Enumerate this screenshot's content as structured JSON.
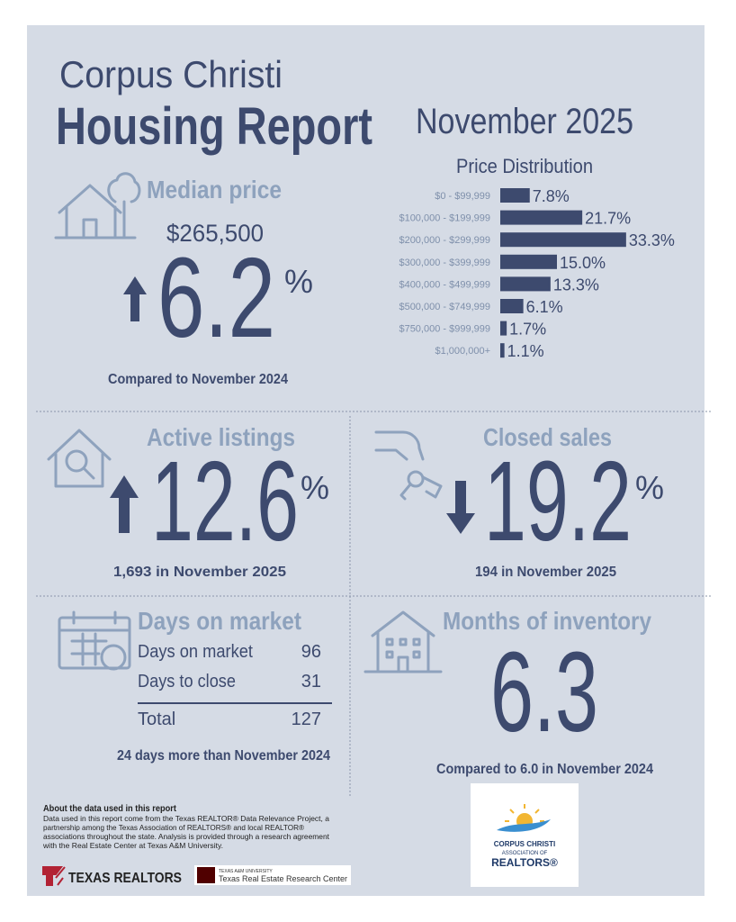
{
  "header": {
    "city": "Corpus Christi",
    "title": "Housing Report",
    "date": "November 2025"
  },
  "median_price": {
    "label": "Median price",
    "value": "$265,500",
    "change": "6.2",
    "unit": "%",
    "comparison": "Compared to November 2024"
  },
  "chart_data": {
    "type": "bar",
    "title": "Price Distribution",
    "categories": [
      "$0 - $99,999",
      "$100,000 - $199,999",
      "$200,000 - $299,999",
      "$300,000 - $399,999",
      "$400,000 - $499,999",
      "$500,000 - $749,999",
      "$750,000 - $999,999",
      "$1,000,000+"
    ],
    "values": [
      7.8,
      21.7,
      33.3,
      15.0,
      13.3,
      6.1,
      1.7,
      1.1
    ],
    "value_labels": [
      "7.8%",
      "21.7%",
      "33.3%",
      "15.0%",
      "13.3%",
      "6.1%",
      "1.7%",
      "1.1%"
    ],
    "color": "#3d4a6e"
  },
  "active_listings": {
    "label": "Active listings",
    "change": "12.6",
    "unit": "%",
    "note": "1,693 in November 2025"
  },
  "closed_sales": {
    "label": "Closed sales",
    "change": "19.2",
    "unit": "%",
    "note": "194 in November 2025"
  },
  "days_on_market": {
    "label": "Days on market",
    "rows": [
      [
        "Days on market",
        "96"
      ],
      [
        "Days to close",
        "31"
      ]
    ],
    "total": [
      "Total",
      "127"
    ],
    "note": "24 days more than November 2024"
  },
  "months_of_inventory": {
    "label": "Months of inventory",
    "value": "6.3",
    "note": "Compared to 6.0 in November 2024"
  },
  "footer": {
    "about_title": "About the data used in this report",
    "about_text": [
      "Data used in this report come from the Texas REALTOR® Data Relevance Project, a",
      "partnership among the Texas Association of REALTORS® and local REALTOR®",
      "associations throughout the state. Analysis is provided through a research agreement",
      "with the Real Estate Center at Texas A&M University."
    ],
    "texas_realtors": "TEXAS REALTORS",
    "tamu_small": "TEXAS A&M UNIVERSITY",
    "tamu_name": "Texas Real Estate Research Center",
    "association": [
      "CORPUS CHRISTI",
      "ASSOCIATION OF",
      "REALTORS®"
    ]
  }
}
